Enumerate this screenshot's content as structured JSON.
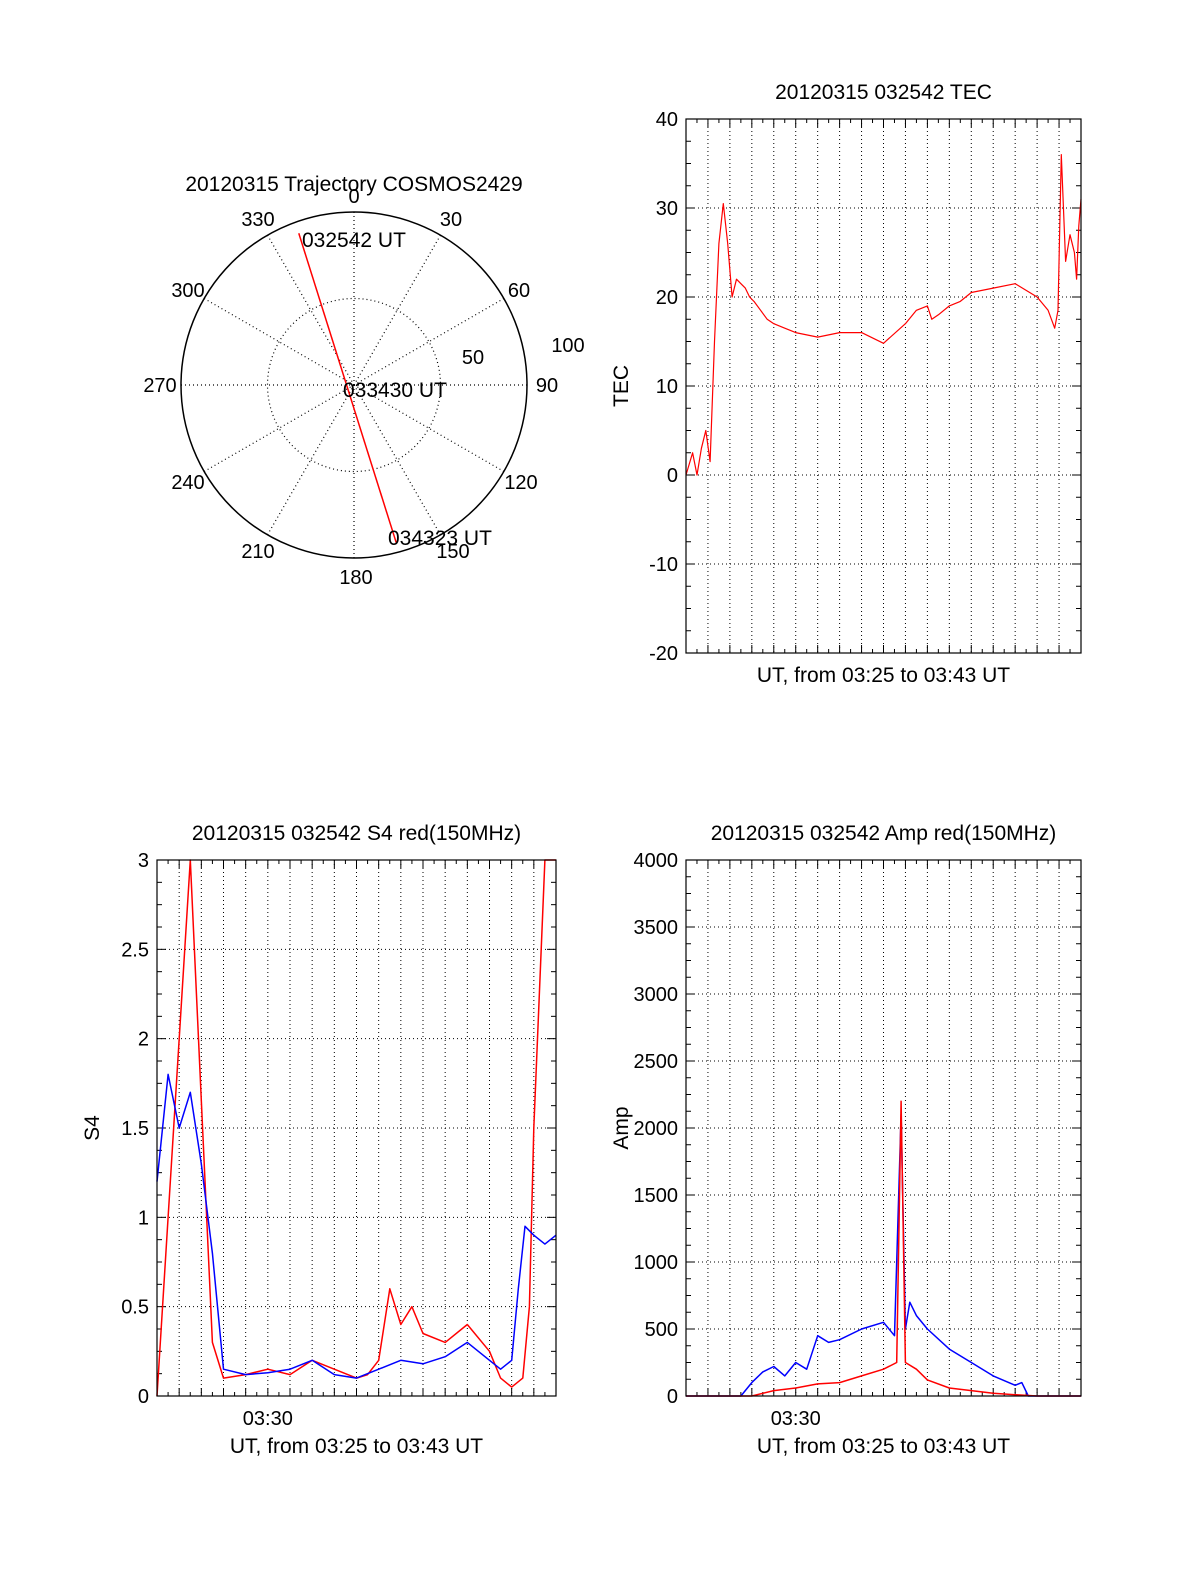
{
  "colors": {
    "red": "#ff0000",
    "blue": "#0000ff",
    "axis": "#000000",
    "grid": "#000000"
  },
  "chart_data": [
    {
      "id": "polar",
      "type": "polar-trajectory",
      "title": "20120315 Trajectory COSMOS2429",
      "azimuth_labels": [
        "0",
        "30",
        "60",
        "90",
        "120",
        "150",
        "180",
        "210",
        "240",
        "270",
        "300",
        "330"
      ],
      "radial_labels": [
        "50",
        "100"
      ],
      "trajectory": [
        {
          "az": 340,
          "el": 6,
          "label": "032542 UT"
        },
        {
          "az": 95,
          "el": 88,
          "label": "033430 UT"
        },
        {
          "az": 165,
          "el": 5,
          "label": "034323 UT"
        }
      ]
    },
    {
      "id": "tec",
      "type": "line",
      "title": "20120315 032542 TEC",
      "xlabel": "UT, from 03:25 to 03:43 UT",
      "ylabel": "TEC",
      "xlim": [
        0,
        18
      ],
      "ylim": [
        -20,
        40
      ],
      "yticks": [
        "-20",
        "-10",
        "0",
        "10",
        "20",
        "30",
        "40"
      ],
      "grid": true,
      "series": [
        {
          "name": "TEC",
          "color": "red",
          "x": [
            0,
            0.3,
            0.5,
            0.7,
            0.9,
            1.1,
            1.3,
            1.5,
            1.7,
            1.9,
            2.1,
            2.3,
            2.5,
            2.7,
            2.9,
            3.1,
            3.4,
            3.7,
            4.0,
            4.5,
            5.0,
            6.0,
            7.0,
            8.0,
            9.0,
            10.0,
            10.5,
            11.0,
            11.2,
            11.5,
            12.0,
            12.5,
            13.0,
            14.0,
            15.0,
            16.0,
            16.5,
            16.8,
            16.95,
            17.1,
            17.3,
            17.5,
            17.7,
            17.8,
            17.9,
            18.0
          ],
          "y": [
            0,
            2.5,
            0,
            3,
            5,
            1.5,
            15,
            26,
            30.5,
            26,
            20,
            22,
            21.5,
            21,
            20,
            19.5,
            18.5,
            17.5,
            17,
            16.5,
            16,
            15.5,
            16,
            16,
            14.8,
            17,
            18.5,
            19,
            17.5,
            18,
            19,
            19.5,
            20.5,
            21,
            21.5,
            20,
            18.5,
            16.5,
            18.5,
            36,
            24,
            27,
            25,
            22,
            28,
            31
          ]
        }
      ]
    },
    {
      "id": "s4",
      "type": "line",
      "title": "20120315 032542 S4 red(150MHz)",
      "xlabel": "UT, from 03:25 to 03:43 UT",
      "ylabel": "S4",
      "xlim": [
        0,
        18
      ],
      "ylim": [
        0,
        3
      ],
      "yticks": [
        "0",
        "0.5",
        "1",
        "1.5",
        "2",
        "2.5",
        "3"
      ],
      "xtick_label": "03:30",
      "xtick_at": 5,
      "grid": true,
      "series": [
        {
          "name": "red",
          "color": "red",
          "x": [
            0,
            1.5,
            2.5,
            3.0,
            4,
            5,
            6,
            7,
            8,
            9,
            9.5,
            10.0,
            10.5,
            11,
            11.5,
            12,
            13,
            14,
            15,
            15.5,
            16,
            16.5,
            16.8,
            17.0,
            17.5,
            18
          ],
          "y": [
            0,
            3,
            0.3,
            0.1,
            0.12,
            0.15,
            0.12,
            0.2,
            0.15,
            0.1,
            0.12,
            0.2,
            0.6,
            0.4,
            0.5,
            0.35,
            0.3,
            0.4,
            0.25,
            0.1,
            0.05,
            0.1,
            0.5,
            1.5,
            3,
            3
          ]
        },
        {
          "name": "blue",
          "color": "blue",
          "x": [
            0,
            0.5,
            1.0,
            1.5,
            2.0,
            2.5,
            3.0,
            4,
            5,
            6,
            7,
            8,
            9,
            10,
            11,
            12,
            13,
            14,
            15,
            15.5,
            16,
            16.3,
            16.6,
            17,
            17.5,
            18
          ],
          "y": [
            1.2,
            1.8,
            1.5,
            1.7,
            1.3,
            0.8,
            0.15,
            0.12,
            0.13,
            0.15,
            0.2,
            0.12,
            0.1,
            0.15,
            0.2,
            0.18,
            0.22,
            0.3,
            0.2,
            0.15,
            0.2,
            0.6,
            0.95,
            0.9,
            0.85,
            0.9
          ]
        }
      ]
    },
    {
      "id": "amp",
      "type": "line",
      "title": "20120315 032542 Amp red(150MHz)",
      "xlabel": "UT, from 03:25 to 03:43 UT",
      "ylabel": "Amp",
      "xlim": [
        0,
        18
      ],
      "ylim": [
        0,
        4000
      ],
      "yticks": [
        "0",
        "500",
        "1000",
        "1500",
        "2000",
        "2500",
        "3000",
        "3500",
        "4000"
      ],
      "xtick_label": "03:30",
      "xtick_at": 5,
      "grid": true,
      "series": [
        {
          "name": "blue",
          "color": "blue",
          "x": [
            0,
            2.5,
            3.0,
            3.5,
            4.0,
            4.5,
            5.0,
            5.5,
            6.0,
            6.5,
            7,
            8,
            9,
            9.5,
            9.8,
            10.0,
            10.2,
            10.5,
            11,
            12,
            13,
            14,
            15,
            15.3,
            15.6,
            16,
            18
          ],
          "y": [
            0,
            0,
            100,
            180,
            220,
            150,
            250,
            200,
            450,
            400,
            420,
            500,
            550,
            450,
            2100,
            500,
            700,
            600,
            500,
            350,
            250,
            150,
            80,
            100,
            0,
            0,
            0
          ]
        },
        {
          "name": "red",
          "color": "red",
          "x": [
            0,
            3.0,
            4.0,
            5.0,
            6.0,
            7.0,
            8.0,
            9.0,
            9.6,
            9.8,
            10.0,
            10.5,
            11,
            12,
            13,
            14,
            15,
            16,
            18
          ],
          "y": [
            0,
            0,
            40,
            60,
            90,
            100,
            150,
            200,
            250,
            2200,
            250,
            200,
            120,
            60,
            40,
            20,
            10,
            0,
            0
          ]
        }
      ]
    }
  ]
}
